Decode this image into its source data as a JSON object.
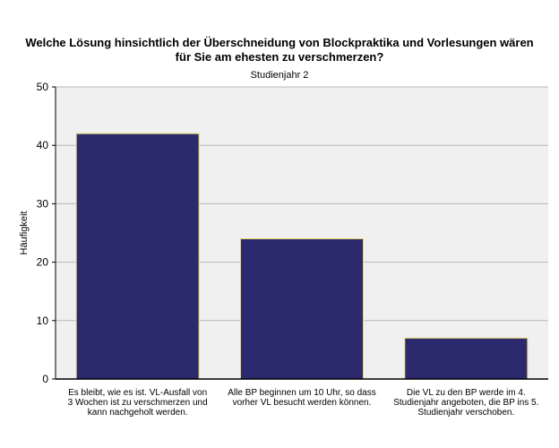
{
  "chart_data": {
    "type": "bar",
    "title": [
      "Welche Lösung hinsichtlich der Überschneidung von Blockpraktika und Vorlesungen wären",
      "für Sie am ehesten zu verschmerzen?"
    ],
    "subtitle": "Studienjahr 2",
    "ylabel": "Häufigkeit",
    "xlabel": "",
    "ylim": [
      0,
      50
    ],
    "yticks": [
      "0",
      "10",
      "20",
      "30",
      "40",
      "50"
    ],
    "grid": true,
    "categories": [
      [
        "Es bleibt, wie es ist. VL-Ausfall von",
        "3 Wochen ist zu verschmerzen und",
        "kann nachgeholt werden."
      ],
      [
        "Alle BP beginnen um 10 Uhr, so dass",
        "vorher VL besucht werden können."
      ],
      [
        "Die VL zu den BP werde im 4.",
        "Studienjahr angeboten, die BP ins 5.",
        "Studienjahr verschoben."
      ]
    ],
    "values": [
      42,
      24,
      7
    ],
    "colors": {
      "bar_fill": "#2b2a6e",
      "bar_edge": "#e8d870",
      "plot_bg": "#f0f0f0",
      "grid": "#b8b8b8"
    }
  }
}
